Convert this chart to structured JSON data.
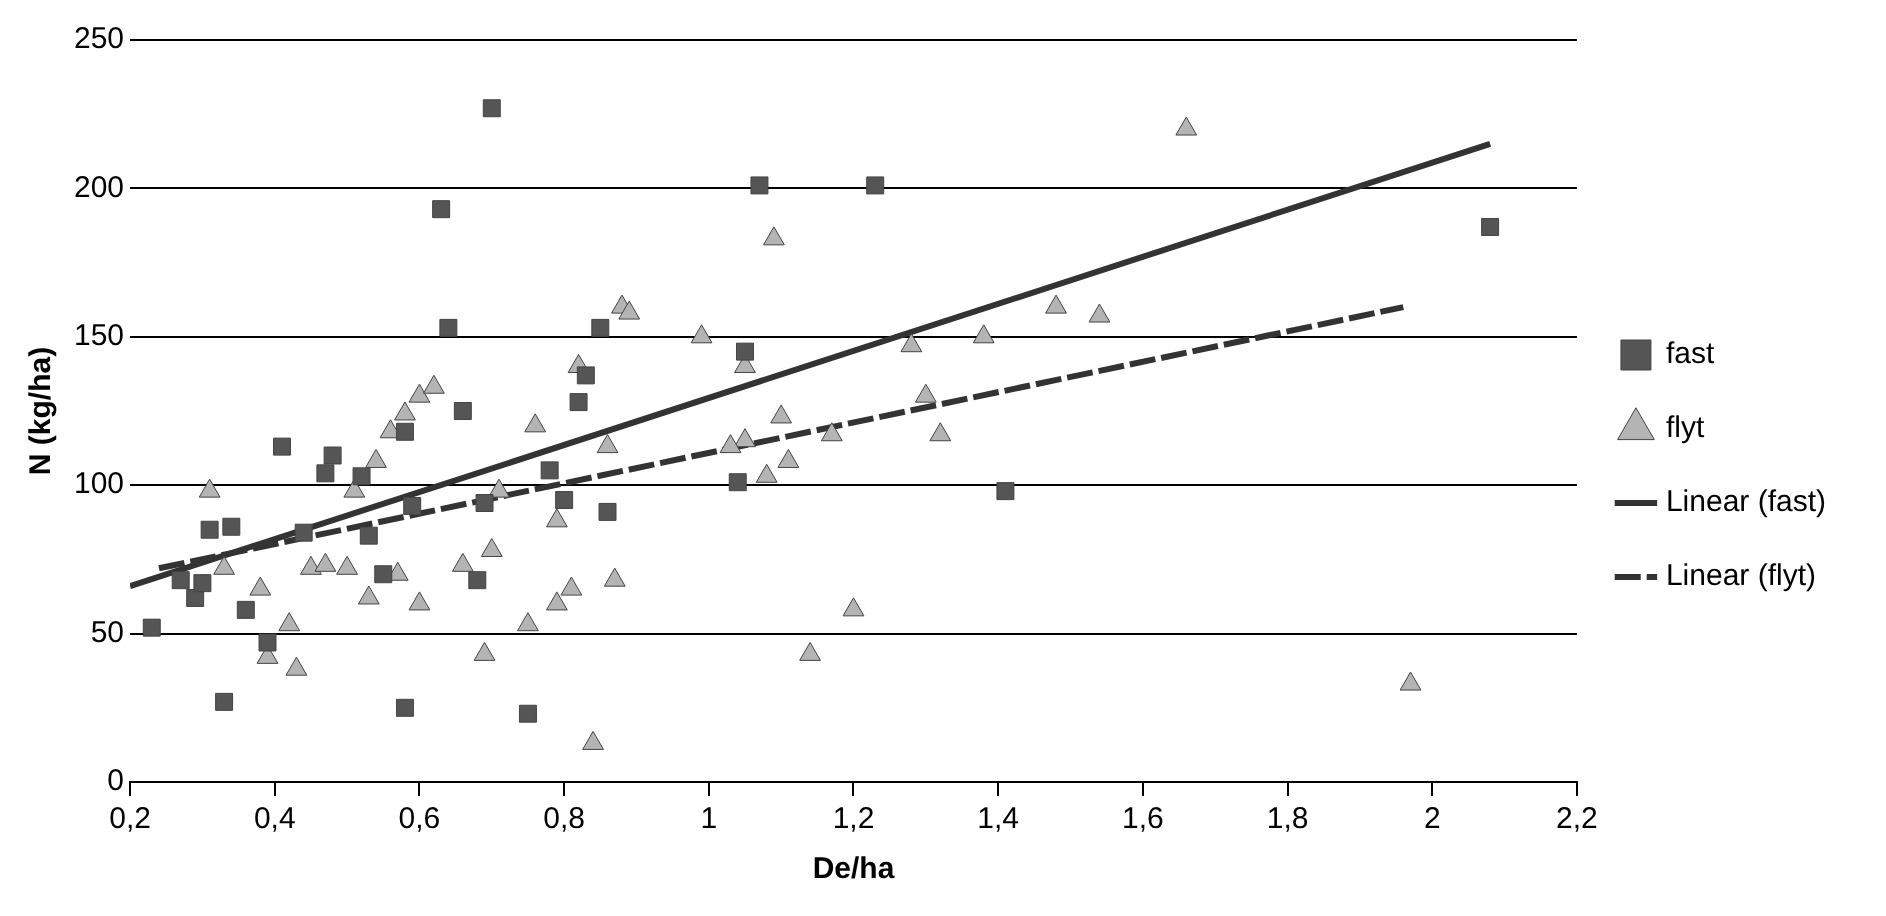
{
  "chart_data": {
    "type": "scatter",
    "xlabel": "De/ha",
    "ylabel": "N (kg/ha)",
    "xlim": [
      0.2,
      2.2
    ],
    "xticks": [
      {
        "value": 0.2,
        "label": "0,2"
      },
      {
        "value": 0.4,
        "label": "0,4"
      },
      {
        "value": 0.6,
        "label": "0,6"
      },
      {
        "value": 0.8,
        "label": "0,8"
      },
      1,
      {
        "value": 1.2,
        "label": "1,2"
      },
      {
        "value": 1.4,
        "label": "1,4"
      },
      {
        "value": 1.6,
        "label": "1,6"
      },
      {
        "value": 1.8,
        "label": "1,8"
      },
      2,
      {
        "value": 2.2,
        "label": "2,2"
      }
    ],
    "ylim": [
      0,
      250
    ],
    "yticks": [
      0,
      50,
      100,
      150,
      200,
      250
    ],
    "grid": "y",
    "legend": "right",
    "series": [
      {
        "name": "fast",
        "type": "scatter",
        "marker": "square",
        "color": "#555555",
        "x": [
          0.23,
          0.27,
          0.29,
          0.31,
          0.33,
          0.34,
          0.36,
          0.39,
          0.41,
          0.44,
          0.47,
          0.48,
          0.52,
          0.53,
          0.55,
          0.58,
          0.59,
          0.58,
          0.63,
          0.64,
          0.66,
          0.68,
          0.7,
          0.69,
          0.75,
          0.78,
          0.8,
          0.82,
          0.83,
          0.85,
          0.86,
          1.04,
          1.05,
          1.07,
          1.23,
          1.41,
          2.08,
          0.3
        ],
        "values": [
          52,
          68,
          62,
          85,
          27,
          86,
          58,
          47,
          113,
          84,
          104,
          110,
          103,
          83,
          70,
          118,
          93,
          25,
          193,
          153,
          125,
          68,
          227,
          94,
          23,
          105,
          95,
          128,
          137,
          153,
          91,
          101,
          145,
          201,
          201,
          98,
          187,
          67
        ]
      },
      {
        "name": "flyt",
        "type": "scatter",
        "marker": "triangle",
        "color": "#b4b4b4",
        "x": [
          0.31,
          0.33,
          0.38,
          0.39,
          0.43,
          0.42,
          0.45,
          0.47,
          0.5,
          0.51,
          0.53,
          0.54,
          0.56,
          0.57,
          0.58,
          0.6,
          0.6,
          0.62,
          0.66,
          0.69,
          0.7,
          0.71,
          0.75,
          0.76,
          0.79,
          0.79,
          0.81,
          0.82,
          0.84,
          0.86,
          0.87,
          0.88,
          0.89,
          0.99,
          1.05,
          1.05,
          1.08,
          1.09,
          1.1,
          1.11,
          1.14,
          1.17,
          1.2,
          1.28,
          1.3,
          1.32,
          1.38,
          1.48,
          1.54,
          1.66,
          1.97,
          1.03
        ],
        "values": [
          98,
          72,
          65,
          42,
          38,
          53,
          72,
          73,
          72,
          98,
          62,
          108,
          118,
          70,
          124,
          60,
          130,
          133,
          73,
          43,
          78,
          98,
          53,
          120,
          60,
          88,
          65,
          140,
          13,
          113,
          68,
          160,
          158,
          150,
          115,
          140,
          103,
          183,
          123,
          108,
          43,
          117,
          58,
          147,
          130,
          117,
          150,
          160,
          157,
          220,
          33,
          113
        ]
      },
      {
        "name": "Linear (fast)",
        "type": "line",
        "marker": "none",
        "line_style": "solid",
        "color": "#333333",
        "x": [
          0.2,
          2.08
        ],
        "values": [
          66,
          215
        ]
      },
      {
        "name": "Linear (flyt)",
        "type": "line",
        "marker": "none",
        "line_style": "dashed",
        "color": "#333333",
        "x": [
          0.24,
          1.96
        ],
        "values": [
          72,
          160
        ]
      }
    ]
  }
}
